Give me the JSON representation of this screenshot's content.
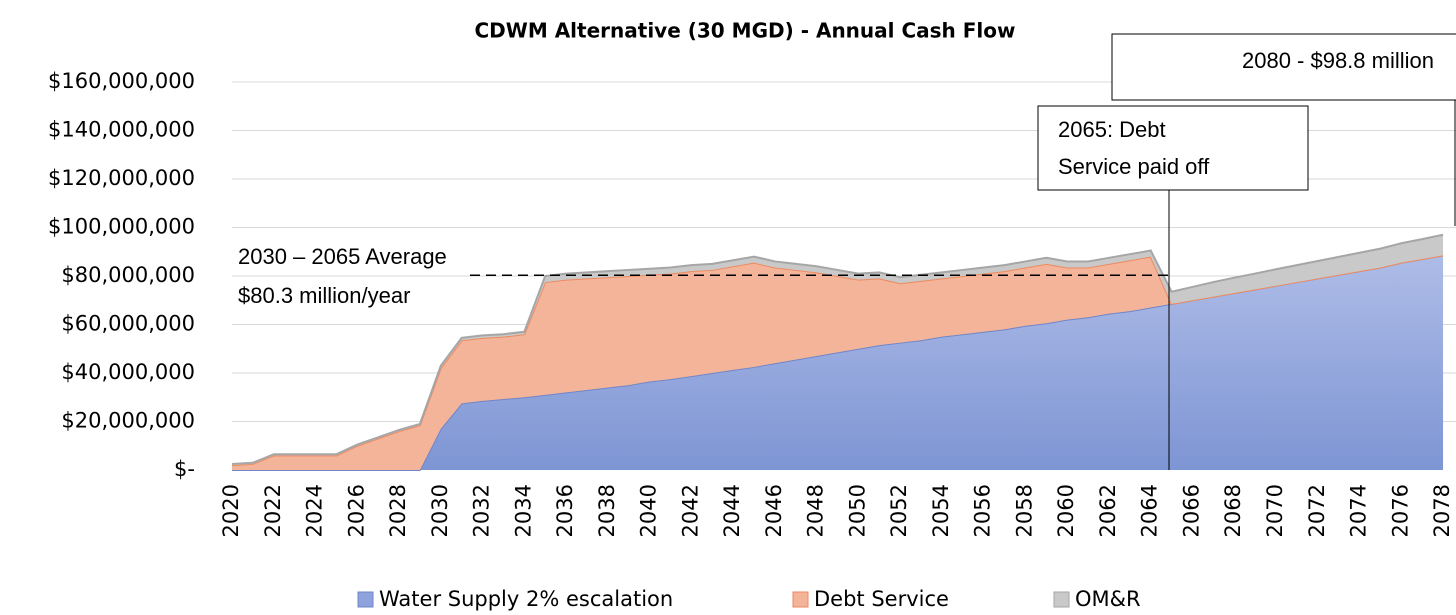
{
  "chart_data": {
    "type": "stacked_area",
    "title": "CDWM Alternative (30 MGD) - Annual Cash Flow",
    "categories": [
      "2020",
      null,
      "2022",
      null,
      "2024",
      null,
      "2026",
      null,
      "2028",
      null,
      "2030",
      null,
      "2032",
      null,
      "2034",
      null,
      "2036",
      null,
      "2038",
      null,
      "2040",
      null,
      "2042",
      null,
      "2044",
      null,
      "2046",
      null,
      "2048",
      null,
      "2050",
      null,
      "2052",
      null,
      "2054",
      null,
      "2056",
      null,
      "2058",
      null,
      "2060",
      null,
      "2062",
      null,
      "2064",
      null,
      "2066",
      null,
      "2068",
      null,
      "2070",
      null,
      "2072",
      null,
      "2074",
      null,
      "2076",
      null,
      "2078"
    ],
    "series": [
      {
        "name": "Water Supply 2% escalation",
        "color": "#8ea2dc",
        "values": [
          0,
          0,
          0,
          0,
          0,
          0,
          0,
          0,
          0,
          0,
          17000000,
          27500000,
          28500000,
          29300000,
          30000000,
          31000000,
          32000000,
          33000000,
          34000000,
          35000000,
          36500000,
          37500000,
          38700000,
          40000000,
          41300000,
          42500000,
          44000000,
          45500000,
          47000000,
          48500000,
          50000000,
          51500000,
          52500000,
          53500000,
          55000000,
          56000000,
          57000000,
          58000000,
          59500000,
          60500000,
          62000000,
          63000000,
          64500000,
          65500000,
          67000000,
          68500000,
          70000000,
          71500000,
          73000000,
          74500000,
          76000000,
          77500000,
          79000000,
          80500000,
          82000000,
          83500000,
          85500000,
          87000000,
          88500000
        ]
      },
      {
        "name": "Debt Service",
        "color": "#f4b49a",
        "values": [
          2000000,
          2500000,
          6000000,
          6000000,
          6000000,
          6000000,
          10000000,
          13000000,
          16000000,
          18500000,
          25000000,
          26000000,
          26000000,
          25700000,
          26000000,
          46500000,
          46500000,
          46000000,
          45500000,
          45000000,
          44000000,
          43500000,
          43300000,
          42500000,
          42700000,
          43000000,
          39500000,
          37000000,
          34500000,
          31500000,
          28500000,
          27500000,
          24500000,
          24500000,
          24000000,
          24000000,
          24000000,
          24000000,
          24000000,
          24500000,
          21500000,
          20500000,
          20500000,
          21000000,
          21000000,
          0,
          0,
          0,
          0,
          0,
          0,
          0,
          0,
          0,
          0,
          0,
          0,
          0,
          0
        ]
      },
      {
        "name": "OM&R",
        "color": "#c9c9c9",
        "values": [
          500000,
          500000,
          500000,
          500000,
          500000,
          500000,
          500000,
          500000,
          500000,
          500000,
          1000000,
          1000000,
          1000000,
          1000000,
          1000000,
          2500000,
          2500000,
          2500000,
          2500000,
          2500000,
          2500000,
          2500000,
          2500000,
          2500000,
          2500000,
          2500000,
          2500000,
          2500000,
          2500000,
          2500000,
          2500000,
          2500000,
          2500000,
          2500000,
          2500000,
          2500000,
          2500000,
          2500000,
          2500000,
          2500000,
          2500000,
          2500000,
          2500000,
          2500000,
          2500000,
          5000000,
          5500000,
          6000000,
          6300000,
          6500000,
          6800000,
          7000000,
          7200000,
          7400000,
          7600000,
          7800000,
          8000000,
          8200000,
          8500000
        ]
      }
    ],
    "ylim": [
      0,
      160000000
    ],
    "yticks": [
      {
        "value": 0,
        "label": "$-"
      },
      {
        "value": 20000000,
        "label": "$20,000,000"
      },
      {
        "value": 40000000,
        "label": "$40,000,000"
      },
      {
        "value": 60000000,
        "label": "$60,000,000"
      },
      {
        "value": 80000000,
        "label": "$80,000,000"
      },
      {
        "value": 100000000,
        "label": "$100,000,000"
      },
      {
        "value": 120000000,
        "label": "$120,000,000"
      },
      {
        "value": 140000000,
        "label": "$140,000,000"
      },
      {
        "value": 160000000,
        "label": "$160,000,000"
      }
    ],
    "grid": true,
    "legend": "bottom",
    "average": {
      "lines": [
        "2030 – 2065 Average",
        "$80.3 million/year"
      ],
      "value": 80300000
    },
    "annotations": [
      {
        "lines": [
          "2080 - $98.8 million"
        ]
      },
      {
        "lines": [
          "2065: Debt",
          "Service paid off"
        ]
      }
    ]
  }
}
